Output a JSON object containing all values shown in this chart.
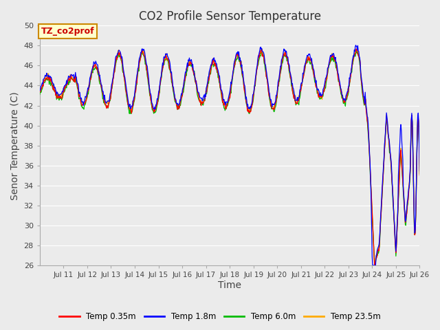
{
  "title": "CO2 Profile Sensor Temperature",
  "ylabel": "Senor Temperature (C)",
  "xlabel": "Time",
  "annotation_text": "TZ_co2prof",
  "annotation_color": "#cc0000",
  "annotation_bg": "#ffffcc",
  "annotation_border": "#cc8800",
  "ylim": [
    26,
    50
  ],
  "yticks": [
    26,
    28,
    30,
    32,
    34,
    36,
    38,
    40,
    42,
    44,
    46,
    48,
    50
  ],
  "xtick_labels": [
    "Jul 11",
    "Jul 12",
    "Jul 13",
    "Jul 14",
    "Jul 15",
    "Jul 16",
    "Jul 17",
    "Jul 18",
    "Jul 19",
    "Jul 20",
    "Jul 21",
    "Jul 22",
    "Jul 23",
    "Jul 24",
    "Jul 25",
    "Jul 26"
  ],
  "plot_bg_color": "#ebebeb",
  "grid_color": "#ffffff",
  "line_colors": {
    "red": "#ff0000",
    "blue": "#0000ff",
    "green": "#00bb00",
    "orange": "#ffaa00"
  },
  "legend_labels": [
    "Temp 0.35m",
    "Temp 1.8m",
    "Temp 6.0m",
    "Temp 23.5m"
  ],
  "title_fontsize": 12,
  "axis_label_fontsize": 10
}
